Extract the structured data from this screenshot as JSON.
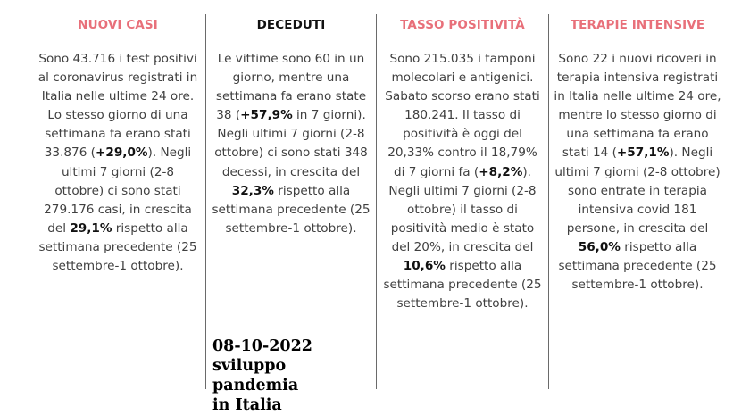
{
  "columns": [
    {
      "title": "NUOVI CASI",
      "parts": [
        {
          "t": "Sono 43.716 i test positivi al coronavirus registrati in Italia nelle ultime 24 ore. Lo stesso giorno di una settimana fa erano stati 33.876 ("
        },
        {
          "t": "+29,0%",
          "b": true
        },
        {
          "t": "). Negli ultimi 7 giorni (2-8 ottobre) ci sono stati 279.176 casi, in crescita del "
        },
        {
          "t": "29,1%",
          "b": true
        },
        {
          "t": " rispetto alla settimana precedente (25 settembre-1 ottobre)."
        }
      ]
    },
    {
      "title": "DECEDUTI",
      "parts": [
        {
          "t": "Le vittime sono 60 in un giorno, mentre una settimana fa erano state 38 ("
        },
        {
          "t": "+57,9%",
          "b": true
        },
        {
          "t": " in 7 giorni). Negli ultimi 7 giorni (2-8 ottobre) ci sono stati 348 decessi, in crescita del "
        },
        {
          "t": "32,3%",
          "b": true
        },
        {
          "t": " rispetto alla settimana precedente (25 settembre-1 ottobre)."
        }
      ]
    },
    {
      "title": "TASSO POSITIVITÀ",
      "parts": [
        {
          "t": "Sono 215.035 i tamponi molecolari e antigenici. Sabato scorso erano stati 180.241. Il tasso di positività è oggi del 20,33% contro il 18,79% di 7 giorni fa ("
        },
        {
          "t": "+8,2%",
          "b": true
        },
        {
          "t": "). Negli ultimi 7 giorni (2-8 ottobre) il tasso di positività medio è stato del 20%, in crescita del "
        },
        {
          "t": "10,6%",
          "b": true
        },
        {
          "t": " rispetto alla settimana precedente (25 settembre-1 ottobre)."
        }
      ]
    },
    {
      "title": "TERAPIE INTENSIVE",
      "parts": [
        {
          "t": "Sono 22 i nuovi ricoveri in terapia intensiva registrati in Italia nelle ultime 24 ore, mentre lo stesso giorno di una settimana fa erano stati 14 ("
        },
        {
          "t": "+57,1%",
          "b": true
        },
        {
          "t": "). Negli ultimi 7 giorni (2-8 ottobre) sono entrate in terapia intensiva covid 181 persone, in crescita del "
        },
        {
          "t": "56,0%",
          "b": true
        },
        {
          "t": " rispetto alla settimana precedente (25 settembre-1 ottobre)."
        }
      ]
    }
  ],
  "caption": {
    "date": "08-10-2022",
    "line2": "sviluppo pandemia",
    "line3": "in Italia"
  },
  "colors": {
    "title_red": "#e8707a",
    "title_dark": "#111111",
    "separator": "#6a6a6a"
  }
}
